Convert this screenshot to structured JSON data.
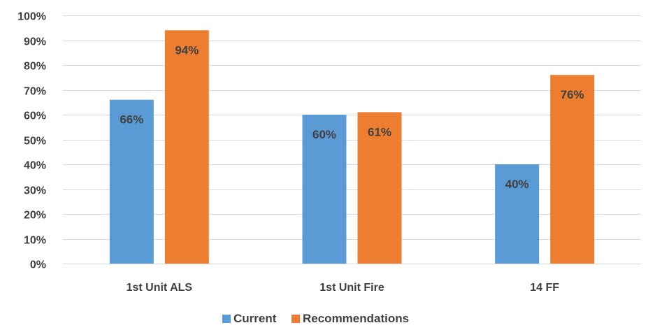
{
  "chart_data": {
    "type": "bar",
    "title": "",
    "xlabel": "",
    "ylabel": "",
    "categories": [
      "1st Unit ALS",
      "1st Unit Fire",
      "14 FF"
    ],
    "series": [
      {
        "name": "Current",
        "values": [
          66,
          60,
          40
        ],
        "color": "#5b9bd5",
        "labels": [
          "66%",
          "60%",
          "40%"
        ]
      },
      {
        "name": "Recommendations",
        "values": [
          94,
          61,
          76
        ],
        "color": "#ed7d31",
        "labels": [
          "94%",
          "61%",
          "76%"
        ]
      }
    ],
    "ylim": [
      0,
      100
    ],
    "yticks": [
      0,
      10,
      20,
      30,
      40,
      50,
      60,
      70,
      80,
      90,
      100
    ],
    "ytick_labels": [
      "0%",
      "10%",
      "20%",
      "30%",
      "40%",
      "50%",
      "60%",
      "70%",
      "80%",
      "90%",
      "100%"
    ],
    "grid": true,
    "legend_position": "bottom"
  }
}
